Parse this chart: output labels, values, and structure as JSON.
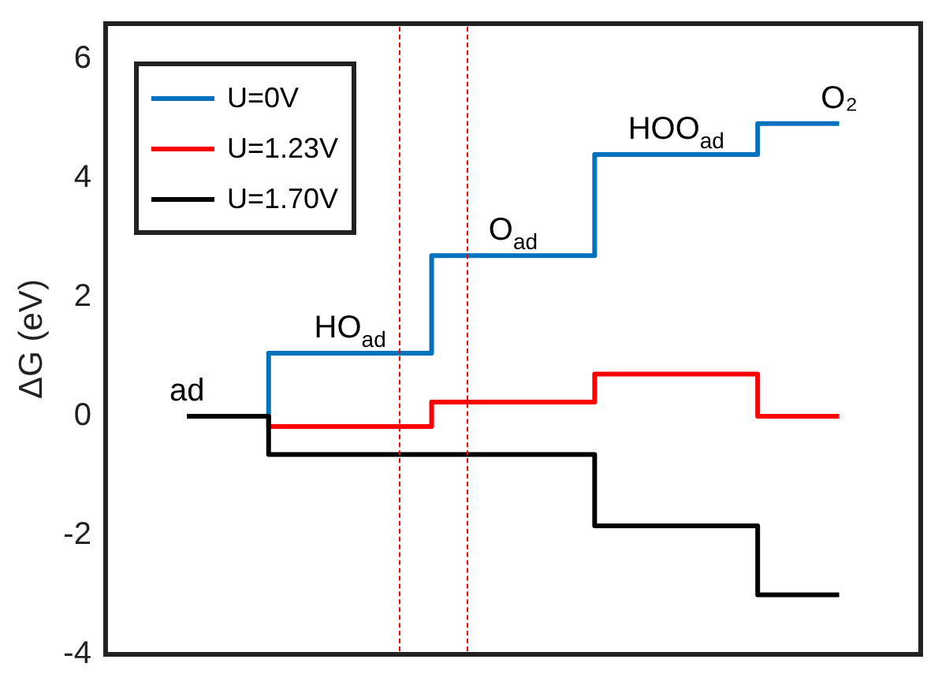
{
  "chart_data": {
    "type": "step",
    "ylabel": "ΔG (eV)",
    "categories": [
      null,
      null,
      null,
      null,
      null
    ],
    "series": [
      {
        "name": "U=0V",
        "color": "#0072bd",
        "values": [
          0,
          1.06,
          2.7,
          4.4,
          4.92
        ]
      },
      {
        "name": "U=1.23V",
        "color": "#ff0000",
        "values": [
          0,
          -0.17,
          0.24,
          0.71,
          0
        ]
      },
      {
        "name": "U=1.70V",
        "color": "#000000",
        "values": [
          0,
          -0.64,
          -0.64,
          -1.84,
          -3.0
        ]
      }
    ],
    "ylim": [
      -4,
      6.6
    ],
    "yticks": [
      -4,
      -2,
      0,
      2,
      4,
      6
    ],
    "tick_labels": "y",
    "grid": false,
    "legend": "top left",
    "marker": "none",
    "line_style": "solid",
    "annotations": [
      "ad",
      "HO$_{ad}$",
      "O$_{ad}$",
      "HOO$_{ad}$",
      "O₂"
    ]
  }
}
